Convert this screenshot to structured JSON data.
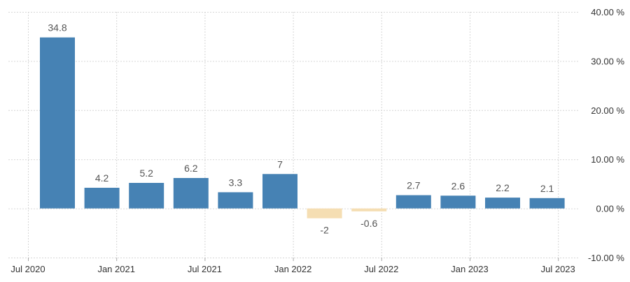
{
  "chart_data": {
    "type": "bar",
    "title": "",
    "xlabel": "",
    "ylabel": "",
    "categories": [
      "Q3 2020",
      "Q4 2020",
      "Q1 2021",
      "Q2 2021",
      "Q3 2021",
      "Q4 2021",
      "Q1 2022",
      "Q2 2022",
      "Q3 2022",
      "Q4 2022",
      "Q1 2023",
      "Q2 2023"
    ],
    "values": [
      34.8,
      4.2,
      5.2,
      6.2,
      3.3,
      7,
      -2,
      -0.6,
      2.7,
      2.6,
      2.2,
      2.1
    ],
    "data_labels": [
      "34.8",
      "4.2",
      "5.2",
      "6.2",
      "3.3",
      "7",
      "-2",
      "-0.6",
      "2.7",
      "2.6",
      "2.2",
      "2.1"
    ],
    "x_tick_labels": [
      "Jul 2020",
      "Jan 2021",
      "Jul 2021",
      "Jan 2022",
      "Jul 2022",
      "Jan 2023",
      "Jul 2023"
    ],
    "y_tick_labels": [
      "40.00 %",
      "30.00 %",
      "20.00 %",
      "10.00 %",
      "0.00 %",
      "-10.00 %"
    ],
    "y_ticks": [
      40,
      30,
      20,
      10,
      0,
      -10
    ],
    "ylim": [
      -10,
      40
    ],
    "y_axis_position": "right",
    "grid": true,
    "colors": {
      "positive": "#4682b4",
      "negative": "#f5deb3"
    }
  }
}
